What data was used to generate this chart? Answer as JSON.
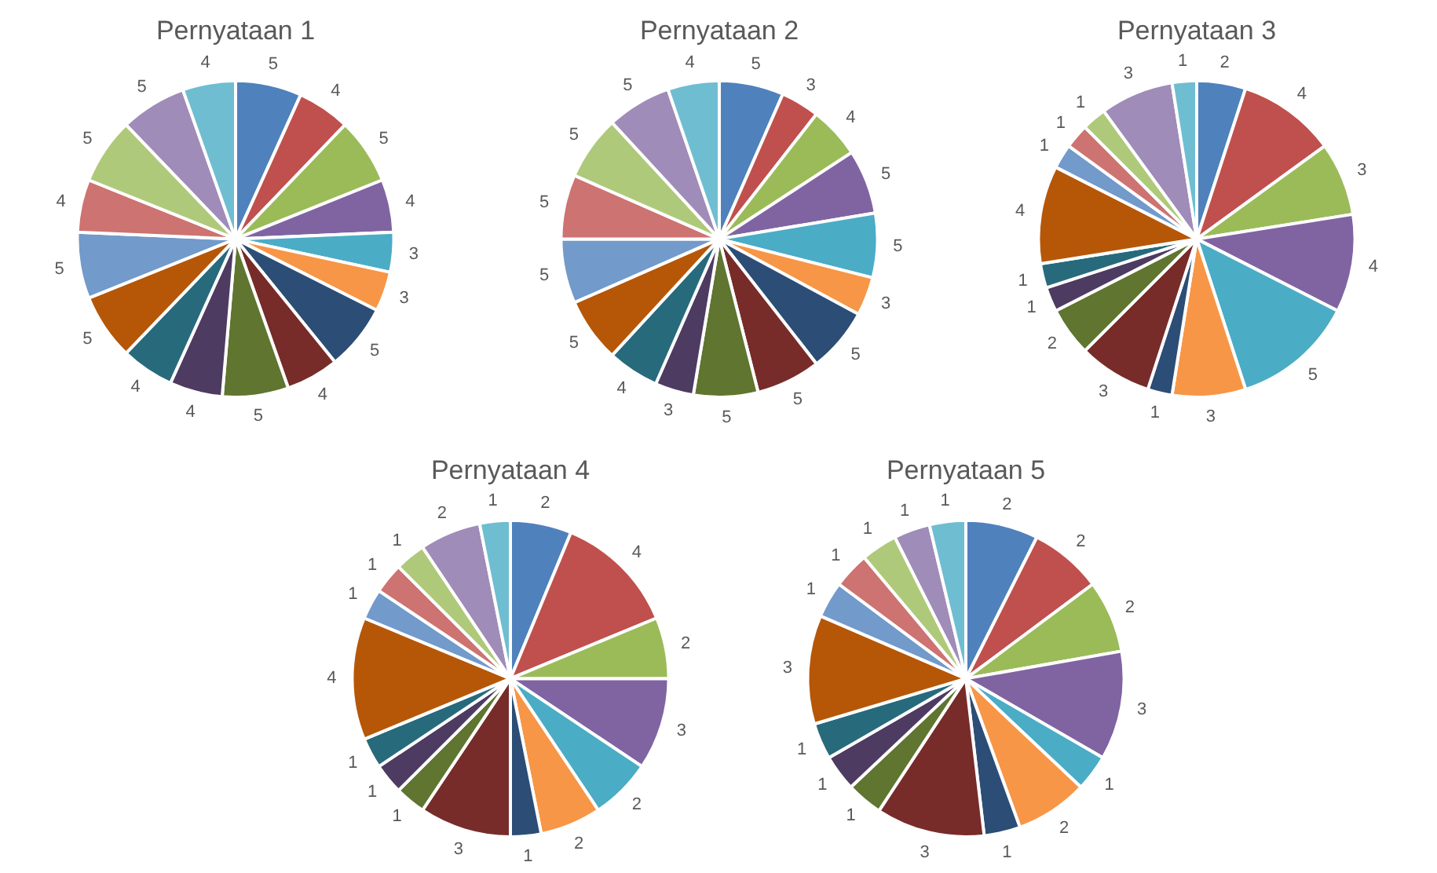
{
  "chart_data": [
    {
      "type": "pie",
      "title": "Pernyataan 1",
      "categories": [
        null,
        null,
        null,
        null,
        null,
        null,
        null,
        null,
        null,
        null,
        null,
        null,
        null,
        null,
        null,
        null,
        null
      ],
      "values": [
        5,
        4,
        5,
        4,
        3,
        3,
        5,
        4,
        5,
        4,
        4,
        5,
        5,
        4,
        5,
        5,
        4
      ],
      "colors": [
        "#4f81bd",
        "#c0504d",
        "#9bbb59",
        "#8064a2",
        "#4bacc6",
        "#f79646",
        "#2c4d75",
        "#772c2a",
        "#5f7530",
        "#4d3b62",
        "#276a7c",
        "#b65708",
        "#729aca",
        "#cd7371",
        "#afc97a",
        "#a08cb8",
        "#6fbdd1"
      ],
      "data_labels": true,
      "legend": false
    },
    {
      "type": "pie",
      "title": "Pernyataan 2",
      "categories": [
        null,
        null,
        null,
        null,
        null,
        null,
        null,
        null,
        null,
        null,
        null,
        null,
        null,
        null,
        null,
        null,
        null
      ],
      "values": [
        5,
        3,
        4,
        5,
        5,
        3,
        5,
        5,
        5,
        3,
        4,
        5,
        5,
        5,
        5,
        5,
        4
      ],
      "colors": [
        "#4f81bd",
        "#c0504d",
        "#9bbb59",
        "#8064a2",
        "#4bacc6",
        "#f79646",
        "#2c4d75",
        "#772c2a",
        "#5f7530",
        "#4d3b62",
        "#276a7c",
        "#b65708",
        "#729aca",
        "#cd7371",
        "#afc97a",
        "#a08cb8",
        "#6fbdd1"
      ],
      "data_labels": true,
      "legend": false
    },
    {
      "type": "pie",
      "title": "Pernyataan 3",
      "categories": [
        null,
        null,
        null,
        null,
        null,
        null,
        null,
        null,
        null,
        null,
        null,
        null,
        null,
        null,
        null,
        null,
        null
      ],
      "values": [
        2,
        4,
        3,
        4,
        5,
        3,
        1,
        3,
        2,
        1,
        1,
        4,
        1,
        1,
        1,
        3,
        1
      ],
      "colors": [
        "#4f81bd",
        "#c0504d",
        "#9bbb59",
        "#8064a2",
        "#4bacc6",
        "#f79646",
        "#2c4d75",
        "#772c2a",
        "#5f7530",
        "#4d3b62",
        "#276a7c",
        "#b65708",
        "#729aca",
        "#cd7371",
        "#afc97a",
        "#a08cb8",
        "#6fbdd1"
      ],
      "data_labels": true,
      "legend": false
    },
    {
      "type": "pie",
      "title": "Pernyataan 4",
      "categories": [
        null,
        null,
        null,
        null,
        null,
        null,
        null,
        null,
        null,
        null,
        null,
        null,
        null,
        null,
        null,
        null,
        null
      ],
      "values": [
        2,
        4,
        2,
        3,
        2,
        2,
        1,
        3,
        1,
        1,
        1,
        4,
        1,
        1,
        1,
        2,
        1
      ],
      "colors": [
        "#4f81bd",
        "#c0504d",
        "#9bbb59",
        "#8064a2",
        "#4bacc6",
        "#f79646",
        "#2c4d75",
        "#772c2a",
        "#5f7530",
        "#4d3b62",
        "#276a7c",
        "#b65708",
        "#729aca",
        "#cd7371",
        "#afc97a",
        "#a08cb8",
        "#6fbdd1"
      ],
      "data_labels": true,
      "legend": false
    },
    {
      "type": "pie",
      "title": "Pernyataan 5",
      "categories": [
        null,
        null,
        null,
        null,
        null,
        null,
        null,
        null,
        null,
        null,
        null,
        null,
        null,
        null,
        null,
        null,
        null
      ],
      "values": [
        2,
        2,
        2,
        3,
        1,
        2,
        1,
        3,
        1,
        1,
        1,
        3,
        1,
        1,
        1,
        1,
        1
      ],
      "colors": [
        "#4f81bd",
        "#c0504d",
        "#9bbb59",
        "#8064a2",
        "#4bacc6",
        "#f79646",
        "#2c4d75",
        "#772c2a",
        "#5f7530",
        "#4d3b62",
        "#276a7c",
        "#b65708",
        "#729aca",
        "#cd7371",
        "#afc97a",
        "#a08cb8",
        "#6fbdd1"
      ],
      "data_labels": true,
      "legend": false
    }
  ]
}
